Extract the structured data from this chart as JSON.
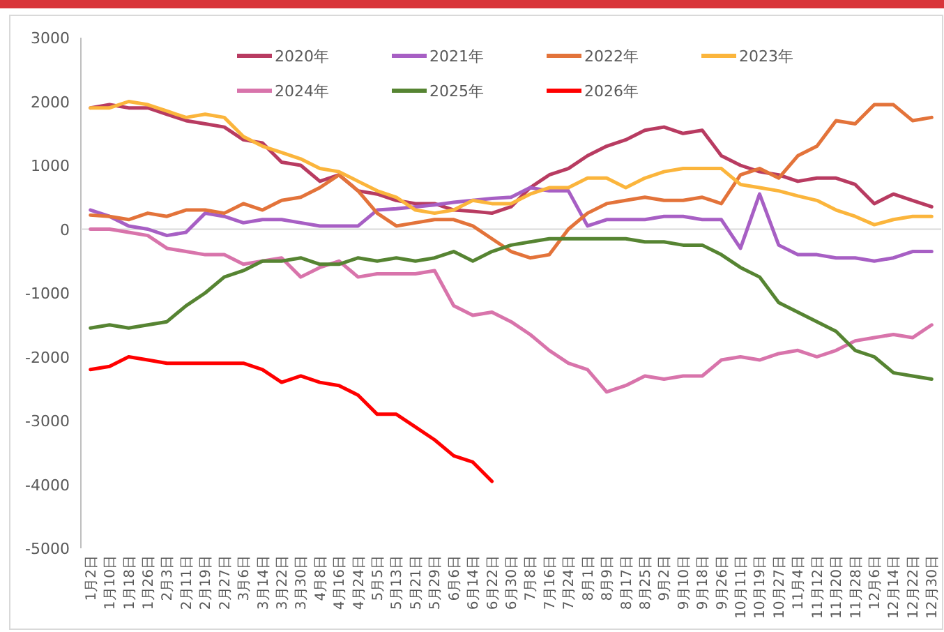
{
  "chart_data": {
    "type": "line",
    "legend": "top",
    "ylim": [
      -5000,
      3000
    ],
    "yticks": [
      -5000,
      -4000,
      -3000,
      -2000,
      -1000,
      0,
      1000,
      2000,
      3000
    ],
    "categories": [
      "1月2日",
      "1月10日",
      "1月18日",
      "1月26日",
      "2月3日",
      "2月11日",
      "2月19日",
      "2月27日",
      "3月6日",
      "3月14日",
      "3月22日",
      "3月30日",
      "4月8日",
      "4月16日",
      "4月24日",
      "5月5日",
      "5月13日",
      "5月21日",
      "5月29日",
      "6月6日",
      "6月14日",
      "6月22日",
      "6月30日",
      "7月8日",
      "7月16日",
      "7月24日",
      "8月1日",
      "8月9日",
      "8月17日",
      "8月25日",
      "9月2日",
      "9月10日",
      "9月18日",
      "9月26日",
      "10月11日",
      "10月19日",
      "10月27日",
      "11月4日",
      "11月12日",
      "11月20日",
      "11月28日",
      "12月6日",
      "12月14日",
      "12月22日",
      "12月30日"
    ],
    "series": [
      {
        "name": "2020年",
        "color": "#b83b61",
        "values": [
          1900,
          1950,
          1900,
          1900,
          1800,
          1700,
          1650,
          1600,
          1400,
          1350,
          1050,
          1000,
          750,
          850,
          600,
          550,
          450,
          400,
          400,
          300,
          280,
          250,
          350,
          650,
          850,
          950,
          1150,
          1300,
          1400,
          1550,
          1600,
          1500,
          1550,
          1150,
          1000,
          900,
          850,
          750,
          800,
          800,
          700,
          400,
          550,
          450,
          350
        ]
      },
      {
        "name": "2021年",
        "color": "#a75fc4",
        "values": [
          300,
          200,
          50,
          0,
          -100,
          -50,
          250,
          200,
          100,
          150,
          150,
          100,
          50,
          50,
          50,
          300,
          320,
          350,
          380,
          420,
          450,
          480,
          500,
          650,
          600,
          600,
          50,
          150,
          150,
          150,
          200,
          200,
          150,
          150,
          -300,
          550,
          -250,
          -400,
          -400,
          -450,
          -450,
          -500,
          -450,
          -350,
          -350
        ]
      },
      {
        "name": "2022年",
        "color": "#e3733a",
        "values": [
          220,
          200,
          150,
          250,
          200,
          300,
          300,
          250,
          400,
          300,
          450,
          500,
          650,
          850,
          600,
          250,
          50,
          100,
          150,
          150,
          50,
          -150,
          -350,
          -450,
          -400,
          0,
          250,
          400,
          450,
          500,
          450,
          450,
          500,
          400,
          850,
          950,
          800,
          1150,
          1300,
          1700,
          1650,
          1950,
          1950,
          1700,
          1750
        ]
      },
      {
        "name": "2023年",
        "color": "#fbb53c",
        "values": [
          1900,
          1900,
          2000,
          1950,
          1850,
          1750,
          1800,
          1750,
          1450,
          1300,
          1200,
          1100,
          950,
          900,
          750,
          600,
          500,
          300,
          250,
          300,
          450,
          400,
          400,
          550,
          650,
          650,
          800,
          800,
          650,
          800,
          900,
          950,
          950,
          950,
          700,
          650,
          600,
          520,
          450,
          300,
          200,
          70,
          150,
          200,
          200
        ]
      },
      {
        "name": "2024年",
        "color": "#d874ab",
        "values": [
          0,
          0,
          -50,
          -100,
          -300,
          -350,
          -400,
          -400,
          -550,
          -500,
          -450,
          -750,
          -600,
          -500,
          -750,
          -700,
          -700,
          -700,
          -650,
          -1200,
          -1350,
          -1300,
          -1450,
          -1650,
          -1900,
          -2100,
          -2200,
          -2550,
          -2450,
          -2300,
          -2350,
          -2300,
          -2300,
          -2050,
          -2000,
          -2050,
          -1950,
          -1900,
          -2000,
          -1900,
          -1750,
          -1700,
          -1650,
          -1700,
          -1500
        ]
      },
      {
        "name": "2025年",
        "color": "#568432",
        "values": [
          -1550,
          -1500,
          -1550,
          -1500,
          -1450,
          -1200,
          -1000,
          -750,
          -650,
          -500,
          -500,
          -450,
          -550,
          -550,
          -450,
          -500,
          -450,
          -500,
          -450,
          -350,
          -500,
          -350,
          -250,
          -200,
          -150,
          -150,
          -150,
          -150,
          -150,
          -200,
          -200,
          -250,
          -250,
          -400,
          -600,
          -750,
          -1150,
          -1300,
          -1450,
          -1600,
          -1900,
          -2000,
          -2250,
          -2300,
          -2350
        ]
      },
      {
        "name": "2026年",
        "color": "#ff0000",
        "values": [
          -2200,
          -2150,
          -2000,
          -2050,
          -2100,
          -2100,
          -2100,
          -2100,
          -2100,
          -2200,
          -2400,
          -2300,
          -2400,
          -2450,
          -2600,
          -2900,
          -2900,
          -3100,
          -3300,
          -3550,
          -3650,
          -3950,
          null,
          null,
          null,
          null,
          null,
          null,
          null,
          null,
          null,
          null,
          null,
          null,
          null,
          null,
          null,
          null,
          null,
          null,
          null,
          null,
          null,
          null,
          null
        ]
      }
    ]
  }
}
